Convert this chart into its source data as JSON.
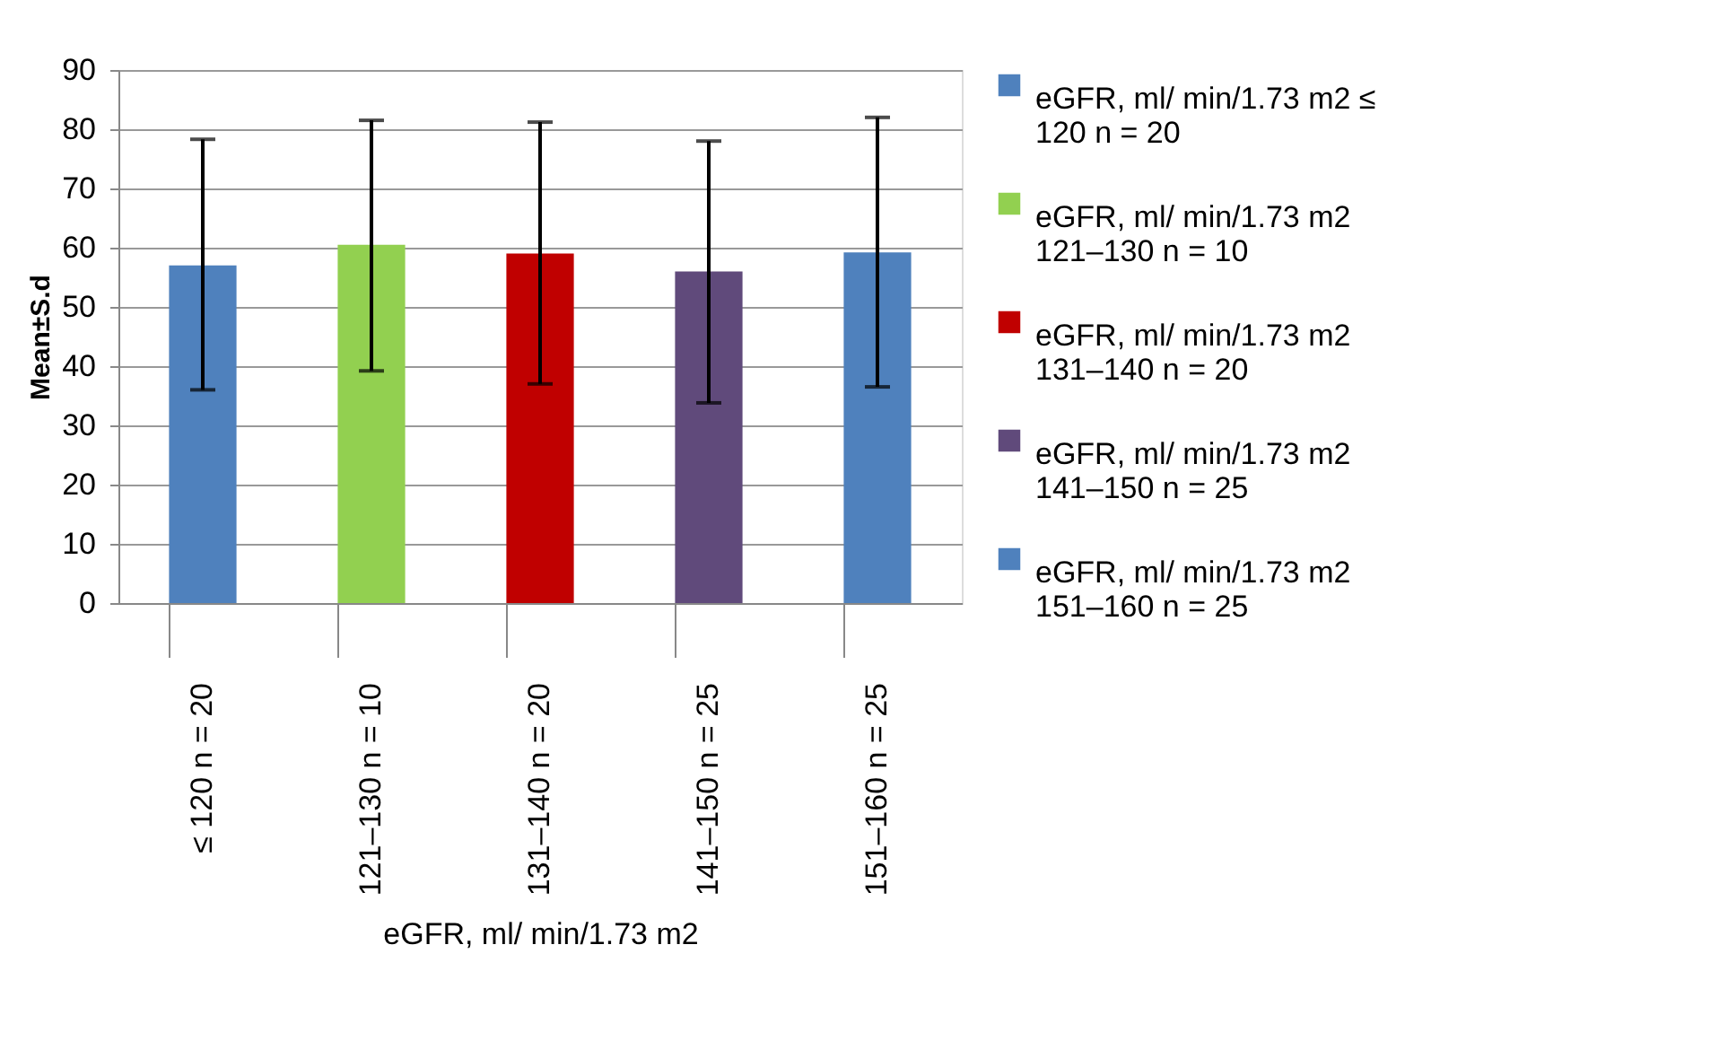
{
  "chart_data": {
    "type": "bar",
    "ylabel": "Mean±S.d",
    "xlabel": "eGFR, ml/ min/1.73 m2",
    "categories": [
      "≤ 120 n = 20",
      "121–130 n = 10",
      "131–140 n = 20",
      "141–150 n = 25",
      "151–160 n = 25"
    ],
    "series": [
      {
        "name": "eGFR, ml/ min/1.73 m2 ≤ 120 n = 20",
        "color": "#4f81bd",
        "values": [
          57,
          null,
          null,
          null,
          null
        ],
        "errors": [
          [
            36,
            78.3
          ],
          null,
          null,
          null,
          null
        ]
      },
      {
        "name": "eGFR, ml/ min/1.73 m2 121–130 n = 10",
        "color": "#92d050",
        "values": [
          null,
          60.5,
          null,
          null,
          null
        ],
        "errors": [
          null,
          [
            39.2,
            81.5
          ],
          null,
          null,
          null
        ]
      },
      {
        "name": "eGFR, ml/ min/1.73 m2 131–140 n = 20",
        "color": "#c00000",
        "values": [
          null,
          null,
          59,
          null,
          null
        ],
        "errors": [
          null,
          null,
          [
            37,
            81.2
          ],
          null,
          null
        ]
      },
      {
        "name": "eGFR, ml/ min/1.73 m2 141–150 n = 25",
        "color": "#604a7b",
        "values": [
          null,
          null,
          null,
          56,
          null
        ],
        "errors": [
          null,
          null,
          null,
          [
            33.8,
            78
          ],
          null
        ]
      },
      {
        "name": "eGFR, ml/ min/1.73 m2 151–160 n = 25",
        "color": "#4f81bd",
        "values": [
          null,
          null,
          null,
          null,
          59.2
        ],
        "errors": [
          null,
          null,
          null,
          null,
          [
            36.5,
            82
          ]
        ]
      }
    ],
    "ylim": [
      0,
      90
    ],
    "yticks": [
      0,
      10,
      20,
      30,
      40,
      50,
      60,
      70,
      80,
      90
    ],
    "grid": "y",
    "legend": "right"
  }
}
